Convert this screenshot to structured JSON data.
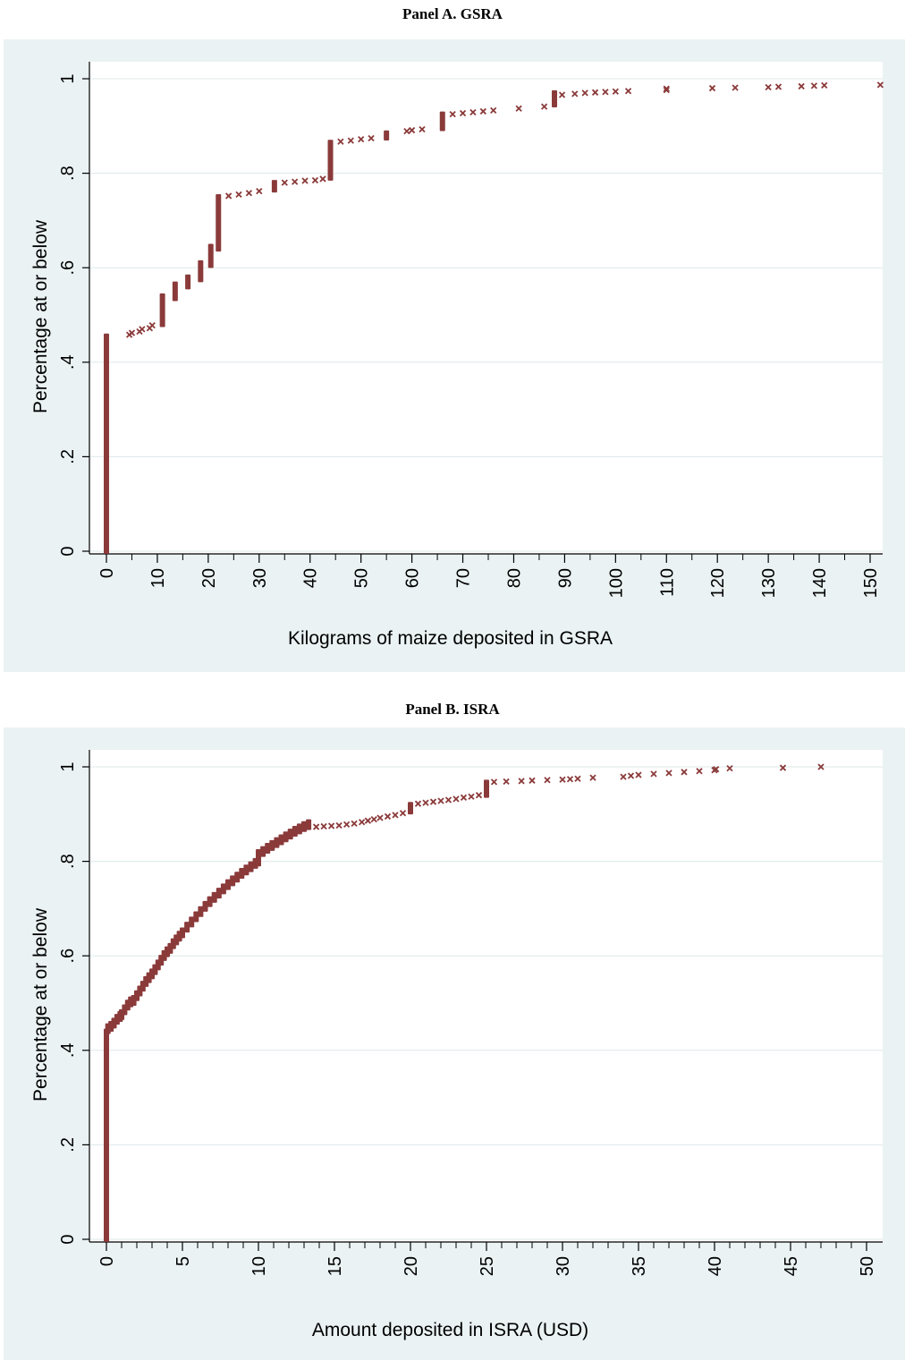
{
  "panels": {
    "a": {
      "title": "Panel A. GSRA"
    },
    "b": {
      "title": "Panel B. ISRA"
    }
  },
  "colors": {
    "background": "#eaf2f3",
    "plot_area": "#ffffff",
    "marker": "#8b3a3a",
    "grid": "#dde8ea"
  },
  "marker_icon": "x-cross-marker",
  "chart_data": [
    {
      "type": "scatter",
      "title": "Panel A. GSRA",
      "xlabel": "Kilograms of maize deposited in GSRA",
      "ylabel": "Percentage at or below",
      "xlim": [
        0,
        155
      ],
      "ylim": [
        0,
        1
      ],
      "xticks": [
        0,
        10,
        20,
        30,
        40,
        50,
        60,
        70,
        80,
        90,
        100,
        110,
        120,
        130,
        140,
        150
      ],
      "xtick_labels": [
        "0",
        "10",
        "20",
        "30",
        "40",
        "50",
        "60",
        "70",
        "80",
        "90",
        "100",
        "110",
        "120",
        "130",
        "140",
        "150"
      ],
      "minor_xticks": [
        5,
        15,
        25,
        35,
        45,
        55,
        65,
        75,
        85,
        95,
        105,
        115,
        125,
        135,
        145
      ],
      "yticks": [
        0,
        0.2,
        0.4,
        0.6,
        0.8,
        1
      ],
      "ytick_labels": [
        "0",
        ".2",
        ".4",
        ".6",
        ".8",
        "1"
      ],
      "grid": true,
      "jumps": [
        {
          "x": 0,
          "y0": 0,
          "y1": 0.455
        },
        {
          "x": 11,
          "y0": 0.48,
          "y1": 0.54
        },
        {
          "x": 13.5,
          "y0": 0.535,
          "y1": 0.565
        },
        {
          "x": 16,
          "y0": 0.56,
          "y1": 0.58
        },
        {
          "x": 18.5,
          "y0": 0.575,
          "y1": 0.61
        },
        {
          "x": 20.5,
          "y0": 0.605,
          "y1": 0.645
        },
        {
          "x": 22,
          "y0": 0.64,
          "y1": 0.75
        },
        {
          "x": 33,
          "y0": 0.765,
          "y1": 0.78
        },
        {
          "x": 44,
          "y0": 0.79,
          "y1": 0.865
        },
        {
          "x": 55,
          "y0": 0.875,
          "y1": 0.885
        },
        {
          "x": 66,
          "y0": 0.895,
          "y1": 0.925
        },
        {
          "x": 88,
          "y0": 0.945,
          "y1": 0.97
        }
      ],
      "points": [
        {
          "x": 4.5,
          "y": 0.458
        },
        {
          "x": 5,
          "y": 0.462
        },
        {
          "x": 6.5,
          "y": 0.465
        },
        {
          "x": 7,
          "y": 0.47
        },
        {
          "x": 8.5,
          "y": 0.472
        },
        {
          "x": 9,
          "y": 0.478
        },
        {
          "x": 24,
          "y": 0.752
        },
        {
          "x": 26,
          "y": 0.755
        },
        {
          "x": 28,
          "y": 0.758
        },
        {
          "x": 30,
          "y": 0.762
        },
        {
          "x": 35,
          "y": 0.78
        },
        {
          "x": 37,
          "y": 0.782
        },
        {
          "x": 39,
          "y": 0.784
        },
        {
          "x": 41,
          "y": 0.785
        },
        {
          "x": 42.5,
          "y": 0.788
        },
        {
          "x": 46,
          "y": 0.867
        },
        {
          "x": 48,
          "y": 0.869
        },
        {
          "x": 50,
          "y": 0.872
        },
        {
          "x": 52,
          "y": 0.874
        },
        {
          "x": 59,
          "y": 0.889
        },
        {
          "x": 60,
          "y": 0.891
        },
        {
          "x": 62,
          "y": 0.893
        },
        {
          "x": 68,
          "y": 0.925
        },
        {
          "x": 70,
          "y": 0.927
        },
        {
          "x": 72,
          "y": 0.929
        },
        {
          "x": 74,
          "y": 0.931
        },
        {
          "x": 76,
          "y": 0.933
        },
        {
          "x": 81,
          "y": 0.937
        },
        {
          "x": 86,
          "y": 0.941
        },
        {
          "x": 89.5,
          "y": 0.966
        },
        {
          "x": 92,
          "y": 0.968
        },
        {
          "x": 94,
          "y": 0.97
        },
        {
          "x": 96,
          "y": 0.971
        },
        {
          "x": 98,
          "y": 0.972
        },
        {
          "x": 100,
          "y": 0.973
        },
        {
          "x": 102.5,
          "y": 0.974
        },
        {
          "x": 110,
          "y": 0.976
        },
        {
          "x": 110,
          "y": 0.979
        },
        {
          "x": 119,
          "y": 0.98
        },
        {
          "x": 123.5,
          "y": 0.981
        },
        {
          "x": 130,
          "y": 0.982
        },
        {
          "x": 132,
          "y": 0.983
        },
        {
          "x": 136.5,
          "y": 0.984
        },
        {
          "x": 139,
          "y": 0.985
        },
        {
          "x": 141,
          "y": 0.986
        },
        {
          "x": 152,
          "y": 0.987
        }
      ]
    },
    {
      "type": "scatter",
      "title": "Panel B. ISRA",
      "xlabel": "Amount deposited in ISRA (USD)",
      "ylabel": "Percentage at or below",
      "xlim": [
        0,
        51
      ],
      "ylim": [
        0,
        1
      ],
      "xticks": [
        0,
        5,
        10,
        15,
        20,
        25,
        30,
        35,
        40,
        45,
        50
      ],
      "xtick_labels": [
        "0",
        "5",
        "10",
        "15",
        "20",
        "25",
        "30",
        "35",
        "40",
        "45",
        "50"
      ],
      "minor_xticks": [
        1,
        2,
        3,
        4,
        6,
        7,
        8,
        9,
        11,
        12,
        13,
        14,
        16,
        17,
        18,
        19,
        21,
        22,
        23,
        24,
        26,
        27,
        28,
        29,
        31,
        32,
        33,
        34,
        36,
        37,
        38,
        39,
        41,
        42,
        43,
        44,
        46,
        47,
        48,
        49
      ],
      "yticks": [
        0,
        0.2,
        0.4,
        0.6,
        0.8,
        1
      ],
      "ytick_labels": [
        "0",
        ".2",
        ".4",
        ".6",
        ".8",
        "1"
      ],
      "grid": true,
      "jumps": [
        {
          "x": 0,
          "y0": 0,
          "y1": 0.44
        },
        {
          "x": 10,
          "y0": 0.795,
          "y1": 0.82
        },
        {
          "x": 20,
          "y0": 0.905,
          "y1": 0.92
        },
        {
          "x": 25,
          "y0": 0.94,
          "y1": 0.967
        }
      ],
      "curve_points": [
        {
          "x": 0.1,
          "y": 0.44
        },
        {
          "x": 0.3,
          "y": 0.445
        },
        {
          "x": 0.5,
          "y": 0.452
        },
        {
          "x": 0.7,
          "y": 0.46
        },
        {
          "x": 0.9,
          "y": 0.466
        },
        {
          "x": 1.0,
          "y": 0.47
        },
        {
          "x": 1.2,
          "y": 0.48
        },
        {
          "x": 1.4,
          "y": 0.49
        },
        {
          "x": 1.6,
          "y": 0.497
        },
        {
          "x": 1.8,
          "y": 0.5
        },
        {
          "x": 2.0,
          "y": 0.51
        },
        {
          "x": 2.2,
          "y": 0.52
        },
        {
          "x": 2.4,
          "y": 0.53
        },
        {
          "x": 2.6,
          "y": 0.54
        },
        {
          "x": 2.8,
          "y": 0.548
        },
        {
          "x": 3.0,
          "y": 0.556
        },
        {
          "x": 3.2,
          "y": 0.565
        },
        {
          "x": 3.4,
          "y": 0.575
        },
        {
          "x": 3.6,
          "y": 0.585
        },
        {
          "x": 3.8,
          "y": 0.595
        },
        {
          "x": 4.0,
          "y": 0.603
        },
        {
          "x": 4.2,
          "y": 0.61
        },
        {
          "x": 4.4,
          "y": 0.62
        },
        {
          "x": 4.6,
          "y": 0.628
        },
        {
          "x": 4.8,
          "y": 0.636
        },
        {
          "x": 5.0,
          "y": 0.643
        },
        {
          "x": 5.3,
          "y": 0.655
        },
        {
          "x": 5.6,
          "y": 0.666
        },
        {
          "x": 5.9,
          "y": 0.677
        },
        {
          "x": 6.2,
          "y": 0.688
        },
        {
          "x": 6.5,
          "y": 0.699
        },
        {
          "x": 6.8,
          "y": 0.709
        },
        {
          "x": 7.1,
          "y": 0.718
        },
        {
          "x": 7.4,
          "y": 0.727
        },
        {
          "x": 7.7,
          "y": 0.736
        },
        {
          "x": 8.0,
          "y": 0.745
        },
        {
          "x": 8.3,
          "y": 0.753
        },
        {
          "x": 8.6,
          "y": 0.761
        },
        {
          "x": 8.9,
          "y": 0.769
        },
        {
          "x": 9.2,
          "y": 0.776
        },
        {
          "x": 9.5,
          "y": 0.783
        },
        {
          "x": 9.8,
          "y": 0.79
        },
        {
          "x": 10.3,
          "y": 0.815
        },
        {
          "x": 10.6,
          "y": 0.822
        },
        {
          "x": 10.9,
          "y": 0.828
        },
        {
          "x": 11.2,
          "y": 0.834
        },
        {
          "x": 11.5,
          "y": 0.84
        },
        {
          "x": 11.8,
          "y": 0.846
        },
        {
          "x": 12.1,
          "y": 0.852
        },
        {
          "x": 12.4,
          "y": 0.858
        },
        {
          "x": 12.7,
          "y": 0.863
        },
        {
          "x": 13.0,
          "y": 0.868
        },
        {
          "x": 13.3,
          "y": 0.872
        }
      ],
      "points": [
        {
          "x": 13.8,
          "y": 0.873
        },
        {
          "x": 14.3,
          "y": 0.874
        },
        {
          "x": 14.8,
          "y": 0.875
        },
        {
          "x": 15.3,
          "y": 0.876
        },
        {
          "x": 15.8,
          "y": 0.878
        },
        {
          "x": 16.3,
          "y": 0.88
        },
        {
          "x": 16.8,
          "y": 0.883
        },
        {
          "x": 17.2,
          "y": 0.886
        },
        {
          "x": 17.6,
          "y": 0.889
        },
        {
          "x": 18.0,
          "y": 0.892
        },
        {
          "x": 18.5,
          "y": 0.895
        },
        {
          "x": 19.0,
          "y": 0.898
        },
        {
          "x": 19.5,
          "y": 0.902
        },
        {
          "x": 20.5,
          "y": 0.922
        },
        {
          "x": 21.0,
          "y": 0.924
        },
        {
          "x": 21.5,
          "y": 0.926
        },
        {
          "x": 22.0,
          "y": 0.928
        },
        {
          "x": 22.5,
          "y": 0.93
        },
        {
          "x": 23.0,
          "y": 0.932
        },
        {
          "x": 23.5,
          "y": 0.935
        },
        {
          "x": 24.0,
          "y": 0.937
        },
        {
          "x": 24.5,
          "y": 0.94
        },
        {
          "x": 25.5,
          "y": 0.968
        },
        {
          "x": 26.3,
          "y": 0.969
        },
        {
          "x": 27.3,
          "y": 0.97
        },
        {
          "x": 28.0,
          "y": 0.971
        },
        {
          "x": 29.0,
          "y": 0.972
        },
        {
          "x": 30.0,
          "y": 0.973
        },
        {
          "x": 30.5,
          "y": 0.974
        },
        {
          "x": 31.0,
          "y": 0.975
        },
        {
          "x": 32.0,
          "y": 0.977
        },
        {
          "x": 34.0,
          "y": 0.979
        },
        {
          "x": 34.5,
          "y": 0.981
        },
        {
          "x": 35.0,
          "y": 0.983
        },
        {
          "x": 36.0,
          "y": 0.985
        },
        {
          "x": 37.0,
          "y": 0.987
        },
        {
          "x": 38.0,
          "y": 0.989
        },
        {
          "x": 39.0,
          "y": 0.991
        },
        {
          "x": 40.0,
          "y": 0.993
        },
        {
          "x": 40.1,
          "y": 0.995
        },
        {
          "x": 41.0,
          "y": 0.997
        },
        {
          "x": 44.5,
          "y": 0.998
        },
        {
          "x": 47.0,
          "y": 1.0
        }
      ]
    }
  ]
}
